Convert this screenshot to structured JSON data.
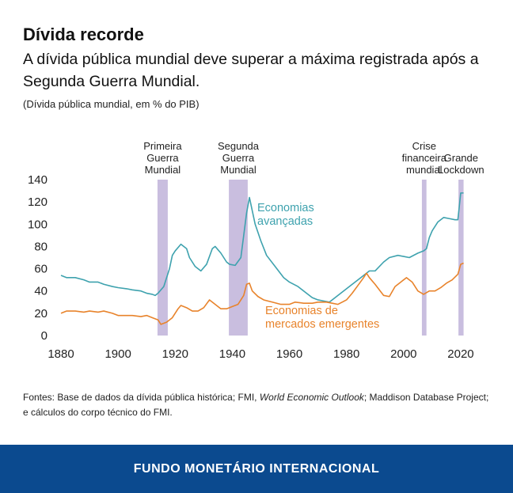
{
  "chart_data": {
    "type": "line",
    "title": "Dívida recorde",
    "subtitle": "A dívida pública mundial deve superar a máxima registrada após a Segunda Guerra Mundial.",
    "note": "(Dívida pública mundial, em % do PIB)",
    "xlim": [
      1876,
      2024
    ],
    "ylim": [
      0,
      140
    ],
    "xticks": [
      1880,
      1900,
      1920,
      1940,
      1960,
      1980,
      2000,
      2020
    ],
    "yticks": [
      0,
      20,
      40,
      60,
      80,
      100,
      120,
      140
    ],
    "grid": false,
    "band_color": "#c9bedf",
    "bands": [
      {
        "lines": [
          "Primeira",
          "Guerra",
          "Mundial"
        ],
        "start": 1913.8,
        "end": 1917.4
      },
      {
        "lines": [
          "Segunda",
          "Guerra",
          "Mundial"
        ],
        "start": 1938.8,
        "end": 1945.4
      },
      {
        "lines": [
          "Crise",
          "financeira",
          "mundial"
        ],
        "start": 2006.4,
        "end": 2008
      },
      {
        "lines": [
          "Grande",
          "Lockdown"
        ],
        "start": 2019.2,
        "end": 2021
      }
    ],
    "series": [
      {
        "name": [
          "Economias",
          "avançadas"
        ],
        "color": "#3ea2ae",
        "x": [
          1880,
          1882,
          1885,
          1888,
          1890,
          1893,
          1895,
          1898,
          1900,
          1903,
          1905,
          1908,
          1910,
          1912,
          1913,
          1914,
          1916,
          1918,
          1919,
          1920,
          1922,
          1924,
          1925,
          1927,
          1929,
          1931,
          1933,
          1934,
          1936,
          1938,
          1939,
          1941,
          1943,
          1944,
          1945,
          1946,
          1947,
          1948,
          1950,
          1952,
          1955,
          1958,
          1960,
          1963,
          1965,
          1968,
          1970,
          1972,
          1974,
          1976,
          1978,
          1980,
          1982,
          1985,
          1988,
          1990,
          1993,
          1995,
          1998,
          2000,
          2002,
          2005,
          2007,
          2008,
          2009,
          2010,
          2012,
          2014,
          2016,
          2018,
          2019,
          2020,
          2021
        ],
        "values": [
          54,
          52,
          52,
          50,
          48,
          48,
          46,
          44,
          43,
          42,
          41,
          40,
          38,
          37,
          36,
          38,
          44,
          60,
          72,
          76,
          82,
          78,
          70,
          62,
          58,
          64,
          78,
          80,
          74,
          66,
          64,
          63,
          70,
          90,
          110,
          124,
          112,
          100,
          85,
          72,
          62,
          52,
          48,
          44,
          40,
          34,
          32,
          31,
          30,
          34,
          38,
          42,
          46,
          52,
          58,
          58,
          66,
          70,
          72,
          71,
          70,
          74,
          76,
          78,
          88,
          94,
          102,
          106,
          105,
          104,
          104,
          128,
          128
        ]
      },
      {
        "name": [
          "Economias de",
          "mercados emergentes"
        ],
        "color": "#e8832b",
        "x": [
          1880,
          1882,
          1885,
          1888,
          1890,
          1893,
          1895,
          1898,
          1900,
          1903,
          1905,
          1908,
          1910,
          1912,
          1914,
          1915,
          1917,
          1919,
          1921,
          1922,
          1924,
          1926,
          1928,
          1930,
          1932,
          1934,
          1936,
          1938,
          1940,
          1942,
          1944,
          1945,
          1946,
          1947,
          1949,
          1951,
          1954,
          1957,
          1960,
          1962,
          1965,
          1968,
          1970,
          1973,
          1975,
          1977,
          1980,
          1982,
          1984,
          1986,
          1987,
          1988,
          1990,
          1993,
          1995,
          1997,
          1999,
          2001,
          2003,
          2005,
          2007,
          2009,
          2011,
          2013,
          2015,
          2017,
          2019,
          2020,
          2021
        ],
        "values": [
          20,
          22,
          22,
          21,
          22,
          21,
          22,
          20,
          18,
          18,
          18,
          17,
          18,
          16,
          14,
          10,
          12,
          16,
          24,
          27,
          25,
          22,
          22,
          25,
          32,
          28,
          24,
          24,
          26,
          28,
          36,
          46,
          47,
          40,
          35,
          32,
          30,
          28,
          28,
          30,
          29,
          29,
          30,
          30,
          29,
          28,
          32,
          38,
          45,
          52,
          56,
          52,
          46,
          36,
          35,
          44,
          48,
          52,
          48,
          40,
          37,
          40,
          40,
          43,
          47,
          50,
          55,
          64,
          65
        ]
      }
    ],
    "source": [
      "Fontes: Base de dados da dívida pública histórica; FMI, ",
      "World Economic Outlook",
      "; Maddison Database Project; e cálculos do corpo técnico do FMI."
    ],
    "footer": "FUNDO MONETÁRIO INTERNACIONAL"
  }
}
